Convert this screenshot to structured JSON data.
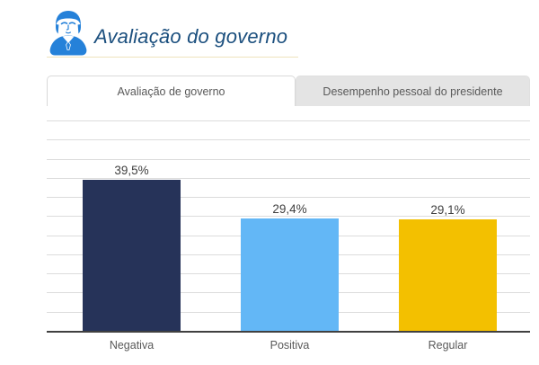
{
  "header": {
    "title": "Avaliação do governo",
    "icon": "person-avatar-icon"
  },
  "tabs": [
    {
      "label": "Avaliação de governo",
      "active": true
    },
    {
      "label": "Desempenho pessoal do presidente",
      "active": false
    }
  ],
  "chart_data": {
    "type": "bar",
    "title": "Avaliação de governo",
    "categories": [
      "Negativa",
      "Positiva",
      "Regular"
    ],
    "values": [
      39.5,
      29.4,
      29.1
    ],
    "value_labels": [
      "39,5%",
      "29,4%",
      "29,1%"
    ],
    "series_colors": [
      "#263359",
      "#63B7F6",
      "#F3C000"
    ],
    "xlabel": "",
    "ylabel": "",
    "ylim": [
      0,
      55
    ],
    "grid_step": 5,
    "grid": true,
    "legend": false
  },
  "colors": {
    "title_text": "#1B4F7E",
    "icon_blue": "#2581D9",
    "axis_line": "#404040",
    "gridline": "#DCDCDC",
    "tab_active_bg": "#FFFFFF",
    "tab_inactive_bg": "#E4E4E4",
    "tab_text": "#595959",
    "value_label_text": "#404040"
  }
}
